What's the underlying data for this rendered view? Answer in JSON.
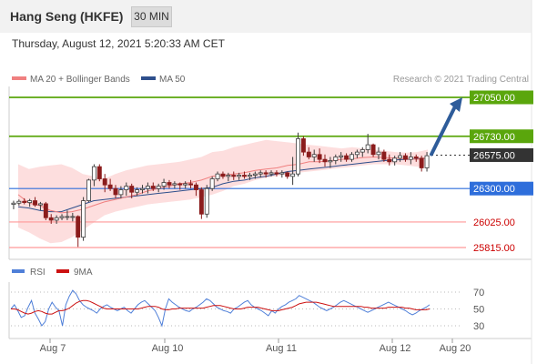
{
  "header": {
    "title": "Hang Seng (HKFE)",
    "timeframe": "30 MIN"
  },
  "timestamp": "Thursday, August 12, 2021 5:20:33 AM CET",
  "legend": {
    "ma20": "MA 20 + Bollinger Bands",
    "ma50": "MA 50",
    "credit": "Research © 2021 Trading Central",
    "rsi": "RSI",
    "ma9": "9MA"
  },
  "colors": {
    "resistance": "#5aa60c",
    "support": "#ff9999",
    "pivot": "#2e6edb",
    "last": "#333333",
    "ma20": "#f08080",
    "ma50": "#2e4f8c",
    "band": "#fddede",
    "arrow": "#2e5c9a",
    "rsi": "#4f7fd8",
    "ma9": "#cc1111",
    "candle_up": "#3a3a3a",
    "candle_down": "#8b1c1c"
  },
  "chart_data": [
    {
      "type": "candlestick",
      "levels": [
        {
          "value": 27050,
          "label": "27050.00",
          "kind": "resistance"
        },
        {
          "value": 26730,
          "label": "26730.00",
          "kind": "resistance"
        },
        {
          "value": 26575,
          "label": "26575.00",
          "kind": "last"
        },
        {
          "value": 26300,
          "label": "26300.00",
          "kind": "pivot"
        },
        {
          "value": 26025,
          "label": "26025.00",
          "kind": "support"
        },
        {
          "value": 25815,
          "label": "25815.00",
          "kind": "support"
        }
      ],
      "x_ticks": [
        "Aug 7",
        "Aug 10",
        "Aug 11",
        "Aug 12",
        "Aug 20"
      ],
      "arrow": {
        "from": 26575,
        "to": 27050
      },
      "ohlc": [
        [
          26170,
          26200,
          26130,
          26180
        ],
        [
          26180,
          26210,
          26160,
          26195
        ],
        [
          26195,
          26220,
          26170,
          26185
        ],
        [
          26185,
          26215,
          26150,
          26200
        ],
        [
          26200,
          26230,
          26150,
          26165
        ],
        [
          26165,
          26190,
          26120,
          26175
        ],
        [
          26175,
          26190,
          26040,
          26060
        ],
        [
          26060,
          26090,
          26010,
          26040
        ],
        [
          26040,
          26080,
          26010,
          26060
        ],
        [
          26060,
          26090,
          26040,
          26070
        ],
        [
          26070,
          26120,
          26040,
          26070
        ],
        [
          26070,
          26100,
          26030,
          26070
        ],
        [
          26070,
          26080,
          25820,
          25900
        ],
        [
          25900,
          26230,
          25870,
          26200
        ],
        [
          26200,
          26380,
          26190,
          26370
        ],
        [
          26370,
          26500,
          26320,
          26480
        ],
        [
          26480,
          26500,
          26360,
          26380
        ],
        [
          26380,
          26420,
          26270,
          26330
        ],
        [
          26330,
          26380,
          26280,
          26300
        ],
        [
          26300,
          26330,
          26220,
          26250
        ],
        [
          26250,
          26320,
          26220,
          26290
        ],
        [
          26290,
          26350,
          26240,
          26320
        ],
        [
          26320,
          26340,
          26220,
          26270
        ],
        [
          26270,
          26310,
          26240,
          26290
        ],
        [
          26290,
          26330,
          26260,
          26300
        ],
        [
          26300,
          26350,
          26260,
          26320
        ],
        [
          26320,
          26350,
          26280,
          26300
        ],
        [
          26300,
          26340,
          26270,
          26320
        ],
        [
          26320,
          26380,
          26290,
          26350
        ],
        [
          26350,
          26370,
          26300,
          26330
        ],
        [
          26330,
          26360,
          26300,
          26340
        ],
        [
          26340,
          26350,
          26290,
          26330
        ],
        [
          26330,
          26360,
          26300,
          26340
        ],
        [
          26340,
          26370,
          26300,
          26330
        ],
        [
          26330,
          26350,
          26240,
          26290
        ],
        [
          26290,
          26310,
          26050,
          26090
        ],
        [
          26090,
          26330,
          26060,
          26300
        ],
        [
          26300,
          26400,
          26280,
          26380
        ],
        [
          26380,
          26440,
          26360,
          26420
        ],
        [
          26420,
          26440,
          26380,
          26400
        ],
        [
          26400,
          26430,
          26360,
          26410
        ],
        [
          26410,
          26440,
          26370,
          26400
        ],
        [
          26400,
          26430,
          26370,
          26410
        ],
        [
          26410,
          26440,
          26380,
          26400
        ],
        [
          26400,
          26430,
          26370,
          26410
        ],
        [
          26410,
          26440,
          26380,
          26420
        ],
        [
          26420,
          26450,
          26390,
          26430
        ],
        [
          26430,
          26450,
          26390,
          26420
        ],
        [
          26420,
          26450,
          26400,
          26430
        ],
        [
          26430,
          26450,
          26400,
          26420
        ],
        [
          26420,
          26450,
          26390,
          26430
        ],
        [
          26430,
          26440,
          26380,
          26400
        ],
        [
          26400,
          26560,
          26330,
          26420
        ],
        [
          26420,
          26760,
          26400,
          26710
        ],
        [
          26710,
          26730,
          26570,
          26600
        ],
        [
          26600,
          26640,
          26540,
          26560
        ],
        [
          26560,
          26620,
          26520,
          26580
        ],
        [
          26580,
          26630,
          26510,
          26540
        ],
        [
          26540,
          26580,
          26480,
          26520
        ],
        [
          26520,
          26560,
          26470,
          26530
        ],
        [
          26530,
          26580,
          26500,
          26560
        ],
        [
          26560,
          26600,
          26520,
          26570
        ],
        [
          26570,
          26590,
          26520,
          26540
        ],
        [
          26540,
          26600,
          26520,
          26580
        ],
        [
          26580,
          26620,
          26550,
          26600
        ],
        [
          26600,
          26640,
          26560,
          26620
        ],
        [
          26620,
          26750,
          26590,
          26660
        ],
        [
          26660,
          26670,
          26560,
          26580
        ],
        [
          26580,
          26640,
          26540,
          26600
        ],
        [
          26600,
          26620,
          26520,
          26540
        ],
        [
          26540,
          26580,
          26490,
          26520
        ],
        [
          26520,
          26570,
          26490,
          26550
        ],
        [
          26550,
          26600,
          26520,
          26570
        ],
        [
          26570,
          26590,
          26520,
          26540
        ],
        [
          26540,
          26600,
          26500,
          26560
        ],
        [
          26560,
          26580,
          26520,
          26550
        ],
        [
          26550,
          26570,
          26440,
          26470
        ],
        [
          26470,
          26600,
          26440,
          26570
        ]
      ],
      "ma20": [
        26250,
        26180,
        26160,
        26120,
        26100,
        26110,
        26130,
        26160,
        26190,
        26210,
        26230,
        26250,
        26280,
        26300,
        26320,
        26340,
        26350,
        26370,
        26400,
        26410,
        26420,
        26430,
        26450,
        26460,
        26470,
        26490,
        26500,
        26520,
        26520,
        26530,
        26540,
        26545,
        26555,
        26560,
        26555,
        26550,
        26545,
        26540,
        26555
      ],
      "ma50": [
        26150,
        26140,
        26120,
        26110,
        26110,
        26140,
        26170,
        26200,
        26210,
        26220,
        26230,
        26240,
        26250,
        26260,
        26270,
        26280,
        26290,
        26300,
        26310,
        26340,
        26360,
        26370,
        26390,
        26400,
        26420,
        26440,
        26450,
        26460,
        26470,
        26480,
        26490,
        26500,
        26510,
        26520,
        26530,
        26535,
        26540,
        26545,
        26550
      ],
      "bb_upper": [
        26500,
        26460,
        26480,
        26490,
        26500,
        26470,
        26420,
        26400,
        26380,
        26420,
        26450,
        26470,
        26490,
        26500,
        26510,
        26520,
        26540,
        26560,
        26600,
        26610,
        26640,
        26660,
        26680,
        26700,
        26690,
        26680,
        26670,
        26660,
        26650,
        26640,
        26630,
        26640,
        26630,
        26620,
        26610,
        26600,
        26595,
        26600,
        26620
      ],
      "bb_lower": [
        25980,
        25940,
        25890,
        25850,
        25860,
        25900,
        25960,
        26020,
        26080,
        26110,
        26130,
        26150,
        26170,
        26180,
        26190,
        26200,
        26210,
        26230,
        26250,
        26280,
        26320,
        26340,
        26370,
        26390,
        26400,
        26420,
        26430,
        26440,
        26450,
        26460,
        26470,
        26480,
        26490,
        26500,
        26500,
        26500,
        26490,
        26480,
        26490
      ]
    },
    {
      "type": "line",
      "y_ticks": [
        70,
        50,
        30
      ],
      "ylim": [
        20,
        80
      ],
      "series": [
        {
          "name": "RSI",
          "values": [
            50,
            55,
            48,
            40,
            42,
            52,
            60,
            45,
            38,
            30,
            35,
            50,
            58,
            52,
            48,
            30,
            55,
            65,
            72,
            68,
            60,
            55,
            52,
            50,
            48,
            45,
            50,
            53,
            55,
            52,
            50,
            48,
            50,
            52,
            48,
            45,
            50,
            55,
            58,
            60,
            56,
            52,
            48,
            40,
            30,
            50,
            62,
            58,
            55,
            52,
            50,
            48,
            47,
            50,
            52,
            55,
            58,
            62,
            60,
            56,
            52,
            50,
            48,
            47,
            45,
            50,
            52,
            55,
            58,
            60,
            55,
            52,
            50,
            48,
            45,
            42,
            48,
            45,
            50,
            53,
            55,
            58,
            60,
            62,
            66,
            64,
            62,
            60,
            58,
            55,
            52,
            50,
            48,
            50,
            52,
            55,
            58,
            60,
            58,
            56,
            54,
            52,
            50,
            48,
            46,
            48,
            50,
            52,
            54,
            56,
            58,
            56,
            54,
            52,
            50,
            48,
            45,
            43,
            45,
            48,
            50,
            52,
            55
          ]
        },
        {
          "name": "9MA",
          "values": [
            50,
            50,
            49,
            47,
            45,
            44,
            45,
            47,
            48,
            47,
            45,
            44,
            44,
            46,
            48,
            48,
            49,
            51,
            54,
            57,
            59,
            60,
            60,
            59,
            57,
            55,
            53,
            51,
            50,
            50,
            50,
            50,
            50,
            50,
            50,
            50,
            50,
            50,
            51,
            52,
            53,
            53,
            53,
            52,
            50,
            49,
            49,
            50,
            50,
            51,
            51,
            51,
            51,
            51,
            51,
            51,
            51,
            52,
            53,
            54,
            54,
            54,
            53,
            52,
            51,
            50,
            50,
            50,
            51,
            52,
            52,
            52,
            52,
            51,
            50,
            49,
            48,
            48,
            48,
            49,
            50,
            51,
            52,
            54,
            56,
            57,
            58,
            58,
            58,
            58,
            57,
            56,
            55,
            54,
            53,
            53,
            53,
            53,
            53,
            53,
            53,
            53,
            53,
            52,
            52,
            51,
            51,
            51,
            51,
            51,
            52,
            52,
            52,
            52,
            52,
            51,
            51,
            50,
            49,
            49,
            49,
            49,
            50
          ]
        }
      ]
    }
  ]
}
